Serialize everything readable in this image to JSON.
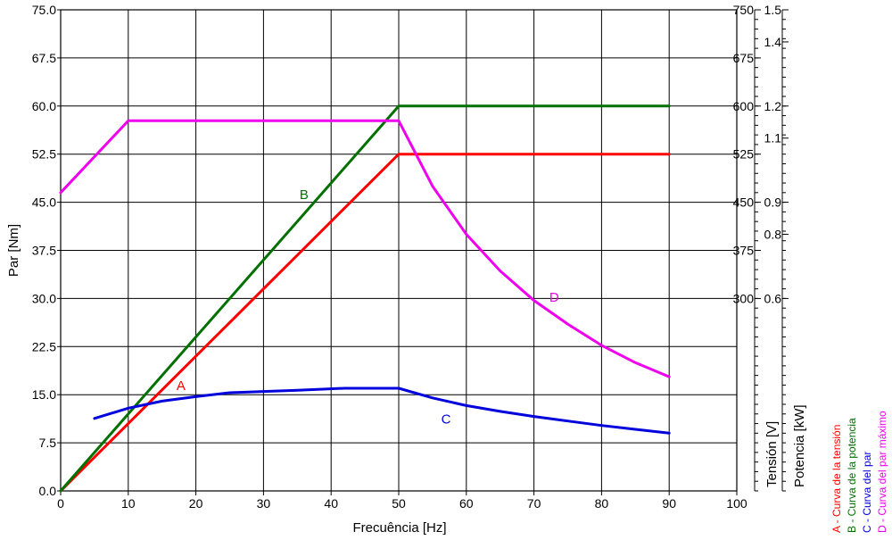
{
  "chart_data": {
    "type": "line",
    "xlabel": "Frecuência [Hz]",
    "ylabel": "Par [Nm]",
    "xlim": [
      0,
      100
    ],
    "ylim": [
      0,
      75
    ],
    "x_ticks": [
      "0",
      "10",
      "20",
      "30",
      "40",
      "50",
      "60",
      "70",
      "80",
      "90",
      "100"
    ],
    "y_ticks": [
      "0.0",
      "7.5",
      "15.0",
      "22.5",
      "30.0",
      "37.5",
      "45.0",
      "52.5",
      "60.0",
      "67.5",
      "75.0"
    ],
    "grid": true,
    "right_axes": [
      {
        "label": "Tensión [V]",
        "ticks": [
          {
            "value": 300,
            "text": "300"
          },
          {
            "value": 375,
            "text": "375"
          },
          {
            "value": 450,
            "text": "450"
          },
          {
            "value": 525,
            "text": "525"
          },
          {
            "value": 600,
            "text": "600"
          },
          {
            "value": 675,
            "text": "675"
          },
          {
            "value": 750,
            "text": "750"
          }
        ],
        "scale_per_left_unit": 10
      },
      {
        "label": "Potencia [kW]",
        "ticks": [
          {
            "value": 0.6,
            "text": "0.6"
          },
          {
            "value": 0.8,
            "text": "0.8"
          },
          {
            "value": 0.9,
            "text": "0.9"
          },
          {
            "value": 1.1,
            "text": "1.1"
          },
          {
            "value": 1.2,
            "text": "1.2"
          },
          {
            "value": 1.4,
            "text": "1.4"
          },
          {
            "value": 1.5,
            "text": "1.5"
          }
        ],
        "scale_per_left_unit": 0.02
      }
    ],
    "legend_position": "right, vertical",
    "legend": [
      {
        "text": "A - Curva de la tensión",
        "color": "#ff0000"
      },
      {
        "text": "B - Curva de la potencia",
        "color": "#007000"
      },
      {
        "text": "C - Curva del par",
        "color": "#0000dd"
      },
      {
        "text": "D - Curva del par máximo",
        "color": "#ee00ee"
      }
    ],
    "series": [
      {
        "name": "A",
        "color": "#ff0000",
        "x": [
          0,
          50,
          90
        ],
        "y": [
          0,
          52.5,
          52.5
        ],
        "label_at": [
          17.8,
          15.7
        ]
      },
      {
        "name": "B",
        "color": "#007000",
        "x": [
          0,
          50,
          90
        ],
        "y": [
          0,
          60,
          60
        ],
        "label_at": [
          36,
          45.5
        ]
      },
      {
        "name": "C",
        "color": "#0000dd",
        "x": [
          5,
          10,
          15,
          20,
          25,
          30,
          35,
          42,
          50,
          55,
          60,
          65,
          70,
          75,
          80,
          85,
          90
        ],
        "y": [
          11.3,
          12.9,
          14.0,
          14.7,
          15.3,
          15.5,
          15.7,
          16.0,
          16.0,
          14.5,
          13.3,
          12.4,
          11.6,
          10.9,
          10.2,
          9.6,
          9.0
        ],
        "label_at": [
          57,
          10.5
        ]
      },
      {
        "name": "D",
        "color": "#ee00ee",
        "x": [
          0,
          10,
          50,
          55,
          60,
          65,
          70,
          75,
          80,
          85,
          90
        ],
        "y": [
          46.5,
          57.7,
          57.7,
          47.5,
          40.0,
          34.3,
          29.7,
          26.0,
          22.7,
          20.0,
          17.8
        ],
        "label_at": [
          73,
          29.5
        ]
      }
    ]
  }
}
